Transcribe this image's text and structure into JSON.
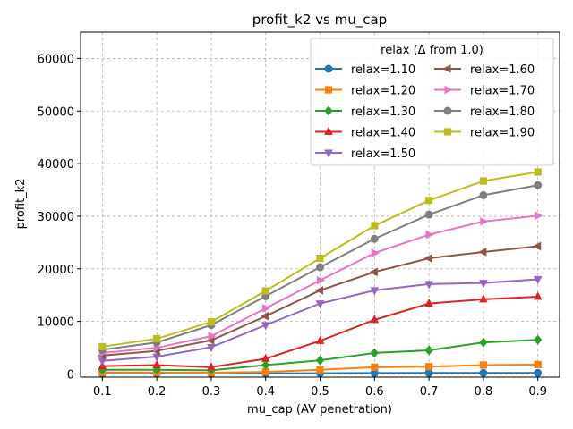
{
  "chart_data": {
    "type": "line",
    "title": "profit_k2 vs mu_cap",
    "xlabel": "mu_cap (AV penetration)",
    "ylabel": "profit_k2",
    "x": [
      0.1,
      0.2,
      0.3,
      0.4,
      0.5,
      0.6,
      0.7,
      0.8,
      0.9
    ],
    "x_tick_labels": [
      "0.1",
      "0.2",
      "0.3",
      "0.4",
      "0.5",
      "0.6",
      "0.7",
      "0.8",
      "0.9"
    ],
    "xlim": [
      0.06,
      0.94
    ],
    "ylim": [
      -600,
      65000
    ],
    "y_ticks": [
      0,
      10000,
      20000,
      30000,
      40000,
      50000,
      60000
    ],
    "y_tick_labels": [
      "0",
      "10000",
      "20000",
      "30000",
      "40000",
      "50000",
      "60000"
    ],
    "grid": true,
    "legend_title": "relax (Δ from 1.0)",
    "legend_position": "top-right",
    "series": [
      {
        "name": "relax=1.10",
        "color": "#1f77b4",
        "marker": "circle",
        "values": [
          100,
          100,
          100,
          120,
          150,
          180,
          200,
          200,
          200
        ]
      },
      {
        "name": "relax=1.20",
        "color": "#ff7f0e",
        "marker": "square",
        "values": [
          300,
          300,
          250,
          400,
          800,
          1300,
          1400,
          1700,
          1800
        ]
      },
      {
        "name": "relax=1.30",
        "color": "#2ca02c",
        "marker": "diamond",
        "values": [
          800,
          800,
          700,
          1700,
          2600,
          4000,
          4500,
          6000,
          6500
        ]
      },
      {
        "name": "relax=1.40",
        "color": "#d62728",
        "marker": "triangle-up",
        "values": [
          1500,
          1700,
          1300,
          2900,
          6300,
          10300,
          13400,
          14200,
          14700
        ]
      },
      {
        "name": "relax=1.50",
        "color": "#9467bd",
        "marker": "triangle-down",
        "values": [
          2500,
          3300,
          5100,
          9300,
          13400,
          15900,
          17100,
          17300,
          18000
        ]
      },
      {
        "name": "relax=1.60",
        "color": "#8c564b",
        "marker": "triangle-left",
        "values": [
          3500,
          4400,
          6400,
          11000,
          15900,
          19400,
          22000,
          23200,
          24300
        ]
      },
      {
        "name": "relax=1.70",
        "color": "#e377c2",
        "marker": "triangle-right",
        "values": [
          4000,
          5000,
          7200,
          12500,
          17800,
          23000,
          26500,
          29000,
          30100
        ]
      },
      {
        "name": "relax=1.80",
        "color": "#7f7f7f",
        "marker": "circle",
        "values": [
          4600,
          6000,
          9300,
          14800,
          20300,
          25700,
          30300,
          34000,
          35900
        ]
      },
      {
        "name": "relax=1.90",
        "color": "#bcbd22",
        "marker": "square",
        "values": [
          5200,
          6700,
          9900,
          15800,
          22000,
          28200,
          33000,
          36700,
          38400
        ]
      }
    ]
  }
}
